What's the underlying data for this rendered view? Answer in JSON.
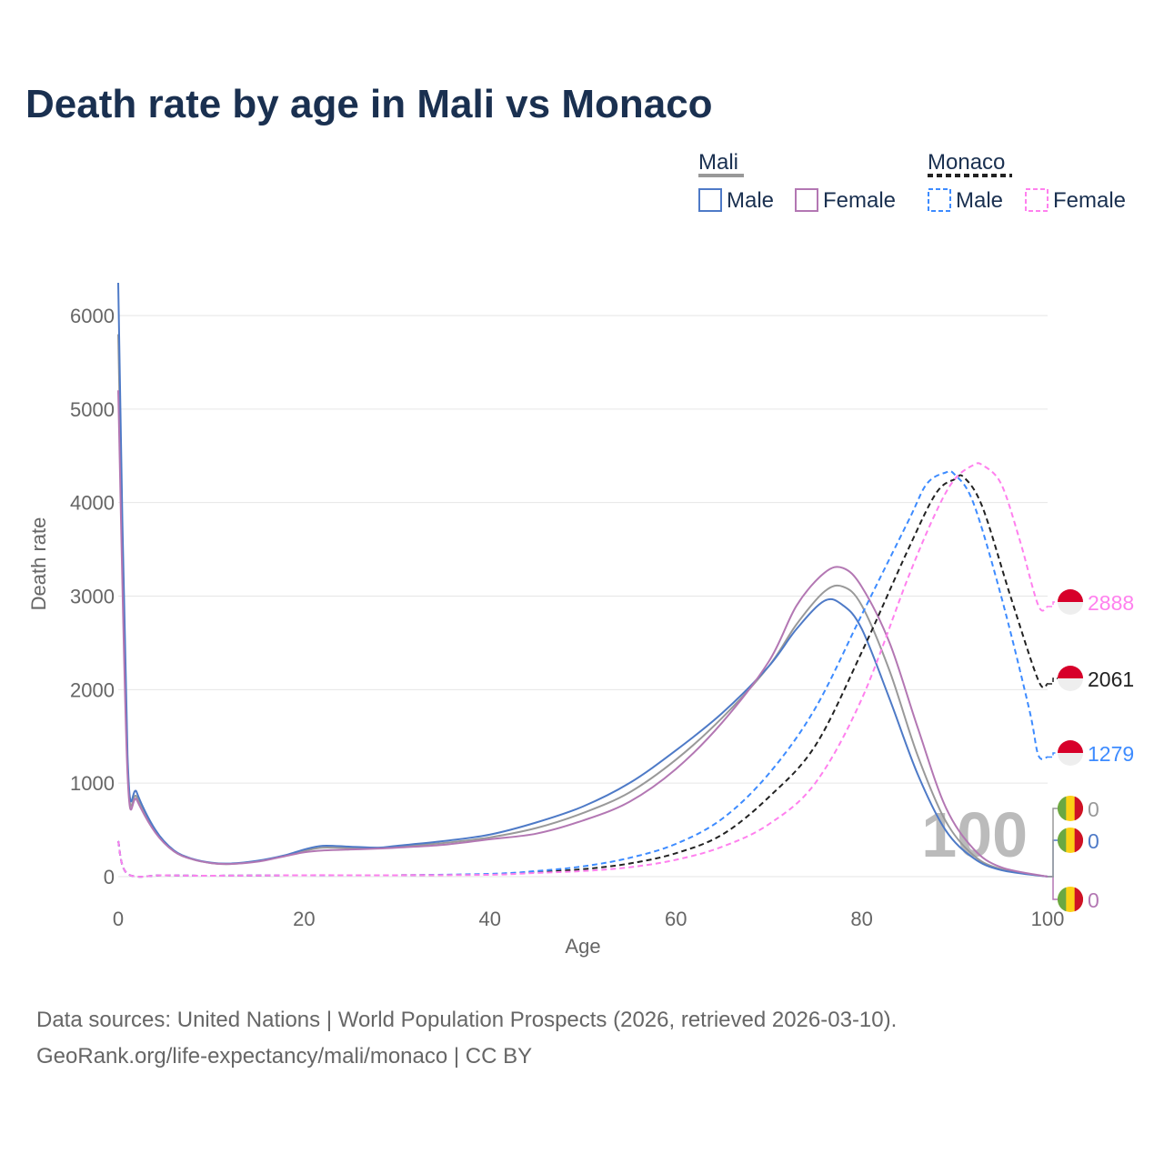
{
  "title": "Death rate by age in Mali vs Monaco",
  "source_line1": "Data sources: United Nations | World Population Prospects (2026, retrieved 2026-03-10).",
  "source_line2": "GeoRank.org/life-expectancy/mali/monaco | CC BY",
  "watermark": "100",
  "chart_data": {
    "type": "line",
    "xlabel": "Age",
    "ylabel": "Death rate",
    "xlim": [
      0,
      100
    ],
    "ylim": [
      0,
      6400
    ],
    "xticks": [
      0,
      20,
      40,
      60,
      80,
      100
    ],
    "yticks": [
      0,
      1000,
      2000,
      3000,
      4000,
      5000,
      6000
    ],
    "grid": true,
    "legend_placement": "top-right",
    "legend": {
      "groups": [
        {
          "name": "Mali",
          "items": [
            "Male",
            "Female"
          ]
        },
        {
          "name": "Monaco",
          "items": [
            "Male",
            "Female"
          ]
        }
      ]
    },
    "series": [
      {
        "name": "Mali total",
        "country": "Mali",
        "color": "#999999",
        "dash": false,
        "end_label": "0",
        "x": [
          0,
          1,
          2,
          4,
          6,
          8,
          10,
          12,
          15,
          18,
          20,
          22,
          25,
          28,
          30,
          35,
          40,
          45,
          50,
          55,
          60,
          65,
          70,
          73,
          76,
          78,
          80,
          83,
          86,
          89,
          92,
          95,
          100
        ],
        "y": [
          5800,
          1200,
          850,
          480,
          270,
          185,
          145,
          135,
          165,
          225,
          275,
          310,
          305,
          305,
          320,
          360,
          420,
          520,
          680,
          900,
          1250,
          1700,
          2250,
          2700,
          3050,
          3100,
          2900,
          2200,
          1300,
          600,
          230,
          80,
          0
        ]
      },
      {
        "name": "Mali male",
        "country": "Mali",
        "color": "#4e7ac7",
        "dash": false,
        "end_label": "0",
        "x": [
          0,
          1,
          2,
          4,
          6,
          8,
          10,
          12,
          15,
          18,
          20,
          22,
          25,
          28,
          30,
          35,
          40,
          45,
          50,
          55,
          60,
          65,
          70,
          73,
          76,
          78,
          80,
          83,
          86,
          89,
          92,
          95,
          100
        ],
        "y": [
          6350,
          1300,
          900,
          500,
          280,
          190,
          150,
          140,
          170,
          230,
          290,
          330,
          320,
          310,
          330,
          380,
          450,
          580,
          750,
          1000,
          1350,
          1750,
          2250,
          2650,
          2950,
          2900,
          2650,
          1900,
          1100,
          500,
          200,
          70,
          0
        ]
      },
      {
        "name": "Mali female",
        "country": "Mali",
        "color": "#b377b3",
        "dash": false,
        "end_label": "0",
        "x": [
          0,
          1,
          2,
          4,
          6,
          8,
          10,
          12,
          15,
          18,
          20,
          22,
          25,
          28,
          30,
          35,
          40,
          45,
          50,
          55,
          60,
          65,
          70,
          73,
          76,
          78,
          80,
          83,
          86,
          89,
          92,
          95,
          100
        ],
        "y": [
          5200,
          1100,
          820,
          470,
          270,
          185,
          145,
          135,
          160,
          220,
          260,
          280,
          290,
          300,
          310,
          340,
          400,
          460,
          600,
          800,
          1150,
          1650,
          2300,
          2900,
          3250,
          3300,
          3100,
          2500,
          1600,
          750,
          300,
          100,
          0
        ]
      },
      {
        "name": "Monaco total",
        "country": "Monaco",
        "color": "#222222",
        "dash": true,
        "end_label": "2061",
        "x": [
          0,
          1,
          5,
          10,
          20,
          30,
          40,
          45,
          50,
          55,
          60,
          65,
          70,
          75,
          80,
          85,
          88,
          90,
          91,
          93,
          96,
          99,
          100
        ],
        "y": [
          380,
          30,
          15,
          10,
          15,
          15,
          25,
          50,
          80,
          140,
          250,
          450,
          850,
          1400,
          2400,
          3500,
          4100,
          4250,
          4270,
          3950,
          3000,
          2100,
          2061
        ]
      },
      {
        "name": "Monaco male",
        "country": "Monaco",
        "color": "#3d8bff",
        "dash": true,
        "end_label": "1279",
        "x": [
          0,
          1,
          5,
          10,
          20,
          30,
          40,
          45,
          50,
          55,
          60,
          65,
          70,
          75,
          80,
          85,
          87,
          89,
          90,
          92,
          95,
          98,
          99,
          100
        ],
        "y": [
          380,
          30,
          15,
          10,
          15,
          15,
          30,
          60,
          110,
          200,
          350,
          620,
          1100,
          1800,
          2800,
          3800,
          4200,
          4320,
          4300,
          4000,
          3000,
          1800,
          1300,
          1279
        ]
      },
      {
        "name": "Monaco female",
        "country": "Monaco",
        "color": "#ff80ee",
        "dash": true,
        "end_label": "2888",
        "x": [
          0,
          1,
          5,
          10,
          20,
          30,
          40,
          45,
          50,
          55,
          60,
          65,
          70,
          75,
          80,
          85,
          88,
          90,
          92,
          93,
          95,
          97,
          99,
          100
        ],
        "y": [
          380,
          30,
          15,
          10,
          15,
          15,
          20,
          40,
          60,
          100,
          180,
          320,
          560,
          1000,
          1900,
          3200,
          3900,
          4250,
          4400,
          4400,
          4200,
          3600,
          2900,
          2888
        ]
      }
    ]
  }
}
